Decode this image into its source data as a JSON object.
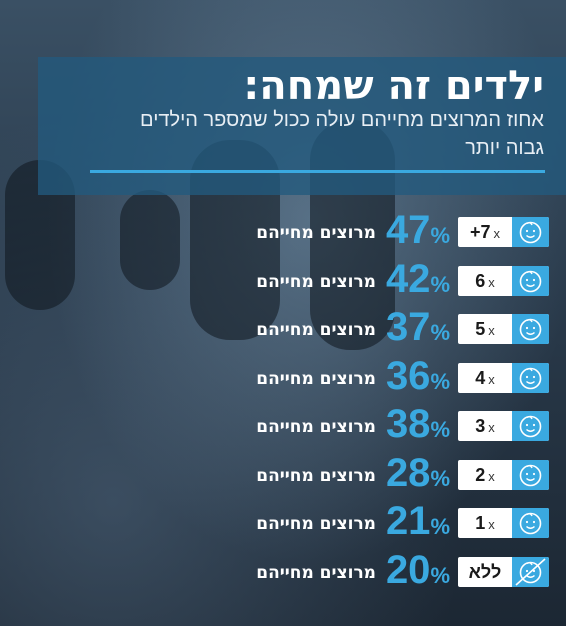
{
  "title": "ילדים זה שמחה:",
  "subtitle": "אחוז המרוצים מחייהם עולה ככול שמספר הילדים גבוה יותר",
  "colors": {
    "accent": "#3aa9e0",
    "panel": "#235a7d",
    "text": "#ffffff"
  },
  "icons": {
    "child": "baby-face-icon",
    "none": "crossed-baby-face-icon"
  },
  "chart_data": {
    "type": "bar",
    "categories": [
      "+7",
      "6",
      "5",
      "4",
      "3",
      "2",
      "1",
      "ללא"
    ],
    "values": [
      47,
      42,
      37,
      36,
      38,
      28,
      21,
      20
    ],
    "unit": "%",
    "value_label": "מרוצים מחייהם",
    "multiplier": "x"
  }
}
